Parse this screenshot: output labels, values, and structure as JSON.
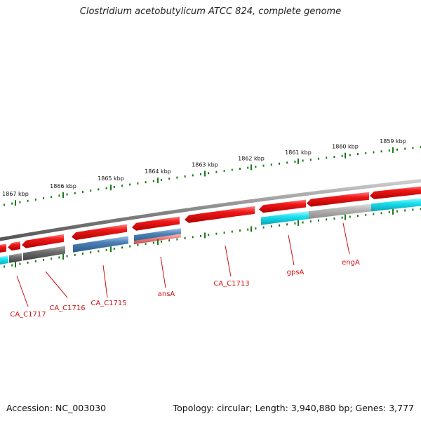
{
  "title": "Clostridium acetobutylicum ATCC 824, complete genome",
  "footer": {
    "accession": "Accession: NC_003030",
    "summary": "Topology: circular; Length: 3,940,880 bp; Genes: 3,777"
  },
  "ticks": [
    {
      "label": "1867 kbp"
    },
    {
      "label": "1866 kbp"
    },
    {
      "label": "1865 kbp"
    },
    {
      "label": "1864 kbp"
    },
    {
      "label": "1863 kbp"
    },
    {
      "label": "1862 kbp"
    },
    {
      "label": "1861 kbp"
    },
    {
      "label": "1860 kbp"
    },
    {
      "label": "1859 kbp"
    }
  ],
  "gene_labels": [
    {
      "name": "CA_C1717"
    },
    {
      "name": "CA_C1716"
    },
    {
      "name": "CA_C1715"
    },
    {
      "name": "ansA"
    },
    {
      "name": "CA_C1713"
    },
    {
      "name": "gpsA"
    },
    {
      "name": "engA"
    }
  ],
  "colors": {
    "cds": "#e8141b",
    "cog_cyan": "#19e1f0",
    "cog_gray": "#6e6e6e",
    "cog_lightgray": "#b4b4b4",
    "cog_blue": "#4a7fb5",
    "cog_pink": "#f08080",
    "backbone": "#888888",
    "tick": "#1a7a1a",
    "label": "#d01010"
  }
}
